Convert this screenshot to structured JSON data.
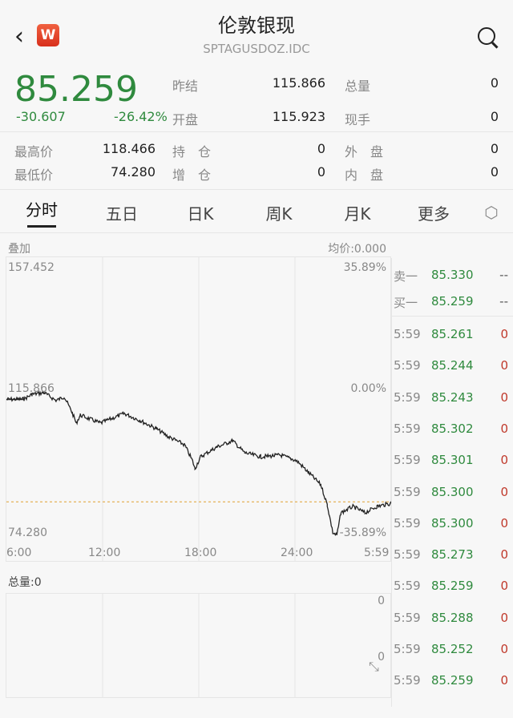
{
  "header": {
    "title": "伦敦银现",
    "code": "SPTAGUSDOZ.IDC",
    "logo": "W"
  },
  "quote": {
    "last": "85.259",
    "change": "-30.607",
    "change_pct": "-26.42%",
    "stats": [
      {
        "label": "昨结",
        "value": "115.866"
      },
      {
        "label": "总量",
        "value": "0"
      },
      {
        "label": "开盘",
        "value": "115.923"
      },
      {
        "label": "现手",
        "value": "0"
      },
      {
        "label": "最高价",
        "value": "118.466"
      },
      {
        "label": "持　仓",
        "value": "0"
      },
      {
        "label": "外　盘",
        "value": "0"
      },
      {
        "label": "最低价",
        "value": "74.280"
      },
      {
        "label": "增　仓",
        "value": "0"
      },
      {
        "label": "内　盘",
        "value": "0"
      }
    ]
  },
  "tabs": [
    "分时",
    "五日",
    "日K",
    "周K",
    "月K",
    "更多"
  ],
  "chart": {
    "overlay_label": "叠加",
    "avg_label": "均价:0.000",
    "max_price": "157.452",
    "max_pct": "35.89%",
    "prev_close": "115.866",
    "zero_pct": "0.00%",
    "min_price": "74.280",
    "min_pct": "-35.89%",
    "volume_label": "总量:0",
    "vol_top": "0",
    "vol_mid": "0"
  },
  "chart_data": {
    "type": "line",
    "x_ticks": [
      "6:00",
      "12:00",
      "18:00",
      "24:00",
      "5:59"
    ],
    "ylim": [
      74.28,
      157.452
    ],
    "reference": 115.866,
    "current": 85.259,
    "times": [
      "06:00",
      "07:06",
      "07:36",
      "08:21",
      "09:06",
      "09:36",
      "10:06",
      "10:21",
      "10:36",
      "11:51",
      "13:21",
      "14:21",
      "15:21",
      "16:06",
      "17:06",
      "17:36",
      "17:45",
      "18:06",
      "19:06",
      "20:06",
      "20:51",
      "21:51",
      "23:06",
      "00:06",
      "00:51",
      "01:36",
      "02:00",
      "02:21",
      "02:36",
      "02:51",
      "03:36",
      "04:21",
      "05:06",
      "05:59"
    ],
    "prices": [
      115.87,
      115.99,
      117.42,
      117.9,
      115.51,
      116.7,
      111.91,
      108.79,
      111.19,
      108.79,
      111.67,
      109.51,
      107.11,
      104.72,
      102.32,
      97.53,
      95.13,
      98.72,
      101.6,
      103.52,
      99.92,
      98.72,
      99.21,
      97.53,
      93.93,
      90.33,
      84.34,
      75.95,
      75.23,
      81.96,
      83.86,
      81.96,
      83.86,
      84.82
    ]
  },
  "orderbook": {
    "ask": {
      "label": "卖一",
      "price": "85.330",
      "vol": "--"
    },
    "bid": {
      "label": "买一",
      "price": "85.259",
      "vol": "--"
    },
    "trades": [
      {
        "t": "5:59",
        "p": "85.261",
        "v": "0"
      },
      {
        "t": "5:59",
        "p": "85.244",
        "v": "0"
      },
      {
        "t": "5:59",
        "p": "85.243",
        "v": "0"
      },
      {
        "t": "5:59",
        "p": "85.302",
        "v": "0"
      },
      {
        "t": "5:59",
        "p": "85.301",
        "v": "0"
      },
      {
        "t": "5:59",
        "p": "85.300",
        "v": "0"
      },
      {
        "t": "5:59",
        "p": "85.300",
        "v": "0"
      },
      {
        "t": "5:59",
        "p": "85.273",
        "v": "0"
      },
      {
        "t": "5:59",
        "p": "85.259",
        "v": "0"
      },
      {
        "t": "5:59",
        "p": "85.288",
        "v": "0"
      },
      {
        "t": "5:59",
        "p": "85.252",
        "v": "0"
      },
      {
        "t": "5:59",
        "p": "85.259",
        "v": "0"
      }
    ]
  }
}
